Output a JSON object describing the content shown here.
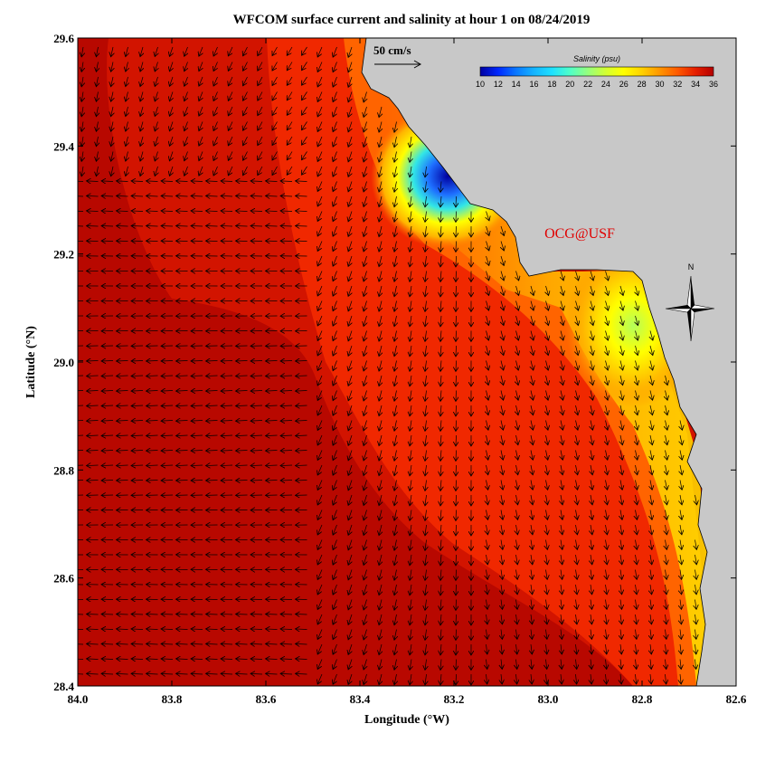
{
  "title": "WFCOM surface current and salinity at hour 1 on 08/24/2019",
  "credit": "OCG@USF",
  "north_label": "N",
  "scale_arrow": {
    "label": "50 cm/s",
    "speed_cm_s": 50
  },
  "colorbar": {
    "title": "Salinity (psu)",
    "min": 10,
    "max": 36,
    "ticks": [
      "10",
      "12",
      "14",
      "16",
      "18",
      "20",
      "22",
      "24",
      "26",
      "28",
      "30",
      "32",
      "34",
      "36"
    ],
    "colors": [
      "#0000a0",
      "#0028ff",
      "#0a78ff",
      "#14b4ff",
      "#1ee1ff",
      "#50ffc8",
      "#96ff7d",
      "#d2ff32",
      "#ffff00",
      "#ffd200",
      "#ff9600",
      "#ff5a00",
      "#e61e00",
      "#b40000"
    ]
  },
  "axes": {
    "xlabel": "Longitude (°W)",
    "ylabel": "Latitude (°N)",
    "xlim": [
      84.0,
      82.6
    ],
    "ylim": [
      28.4,
      29.6
    ],
    "xticks": [
      "84.0",
      "83.8",
      "83.6",
      "83.4",
      "83.2",
      "83.0",
      "82.8",
      "82.6"
    ],
    "yticks": [
      "28.4",
      "28.6",
      "28.8",
      "29.0",
      "29.2",
      "29.4",
      "29.6"
    ]
  },
  "colors": {
    "land": "#c8c8c8",
    "coast": "#000000",
    "credit": "#e00000",
    "arrows": "#000000"
  }
}
